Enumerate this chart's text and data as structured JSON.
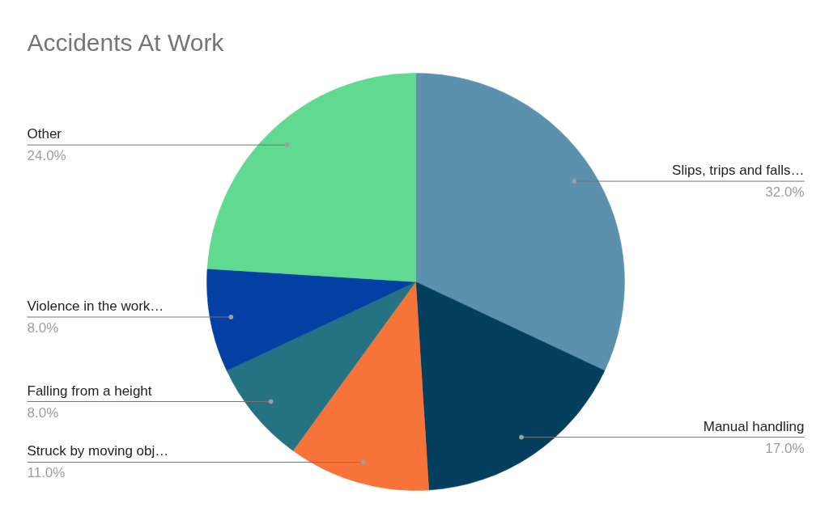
{
  "chart_data": {
    "type": "pie",
    "title": "Accidents At Work",
    "categories": [
      "Slips, trips and falls…",
      "Manual handling",
      "Struck by moving obj…",
      "Falling from a height",
      "Violence in the work…",
      "Other"
    ],
    "values": [
      32,
      17,
      11,
      8,
      8,
      24
    ],
    "colors": [
      "#5b91ad",
      "#04405e",
      "#f6743a",
      "#247282",
      "#0240a3",
      "#5fda90"
    ],
    "value_labels": [
      "32.0%",
      "17.0%",
      "11.0%",
      "8.0%",
      "8.0%",
      "24.0%"
    ]
  }
}
